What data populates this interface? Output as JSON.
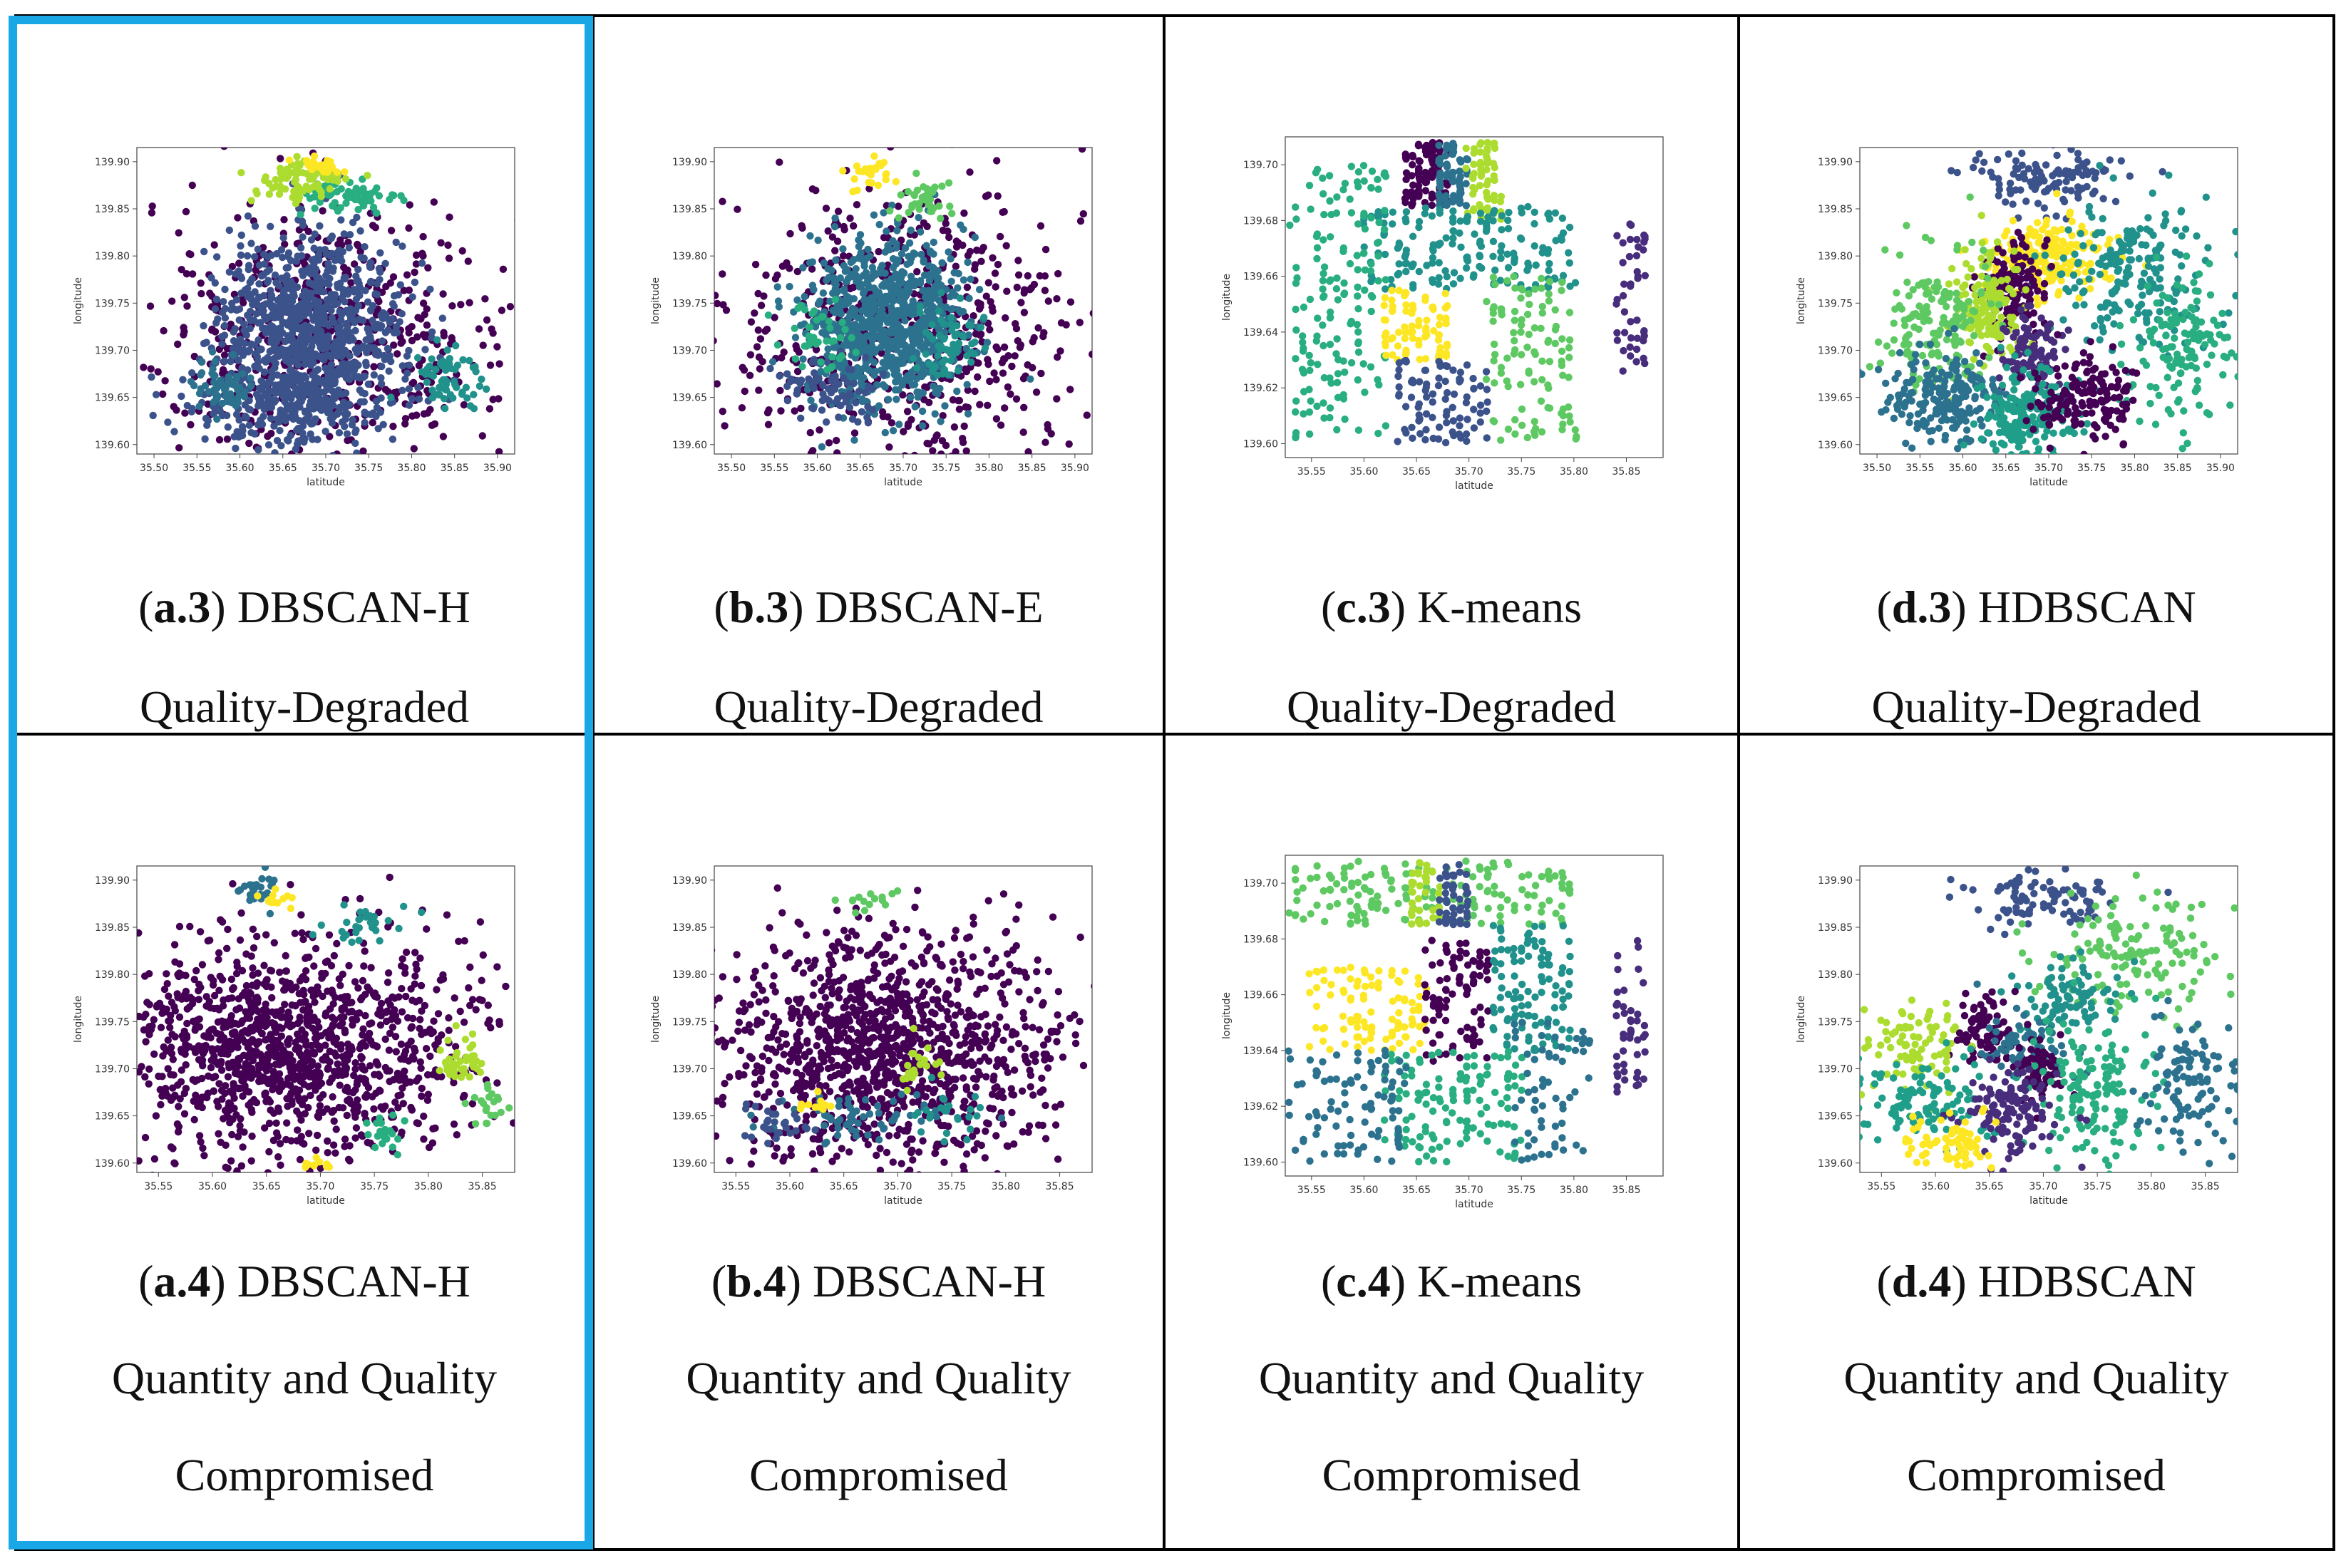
{
  "figure": {
    "highlight_color": "#1aa7e6",
    "palette": [
      "#440154",
      "#3b528b",
      "#21918c",
      "#5ec962",
      "#fde725",
      "#2c728e",
      "#28ae80",
      "#addc30",
      "#472d7b",
      "#31688e",
      "#1f9e89",
      "#90d743"
    ]
  },
  "panels": [
    {
      "id": "a3",
      "tag": "a.3",
      "method": "DBSCAN-H",
      "cond1": "Quality-Degraded",
      "cond2": ""
    },
    {
      "id": "b3",
      "tag": "b.3",
      "method": "DBSCAN-E",
      "cond1": "Quality-Degraded",
      "cond2": ""
    },
    {
      "id": "c3",
      "tag": "c.3",
      "method": "K-means",
      "cond1": "Quality-Degraded",
      "cond2": ""
    },
    {
      "id": "d3",
      "tag": "d.3",
      "method": "HDBSCAN",
      "cond1": "Quality-Degraded",
      "cond2": ""
    },
    {
      "id": "a4",
      "tag": "a.4",
      "method": "DBSCAN-H",
      "cond1": "Quantity and Quality",
      "cond2": "Compromised"
    },
    {
      "id": "b4",
      "tag": "b.4",
      "method": "DBSCAN-H",
      "cond1": "Quantity and Quality",
      "cond2": "Compromised"
    },
    {
      "id": "c4",
      "tag": "c.4",
      "method": "K-means",
      "cond1": "Quantity and Quality",
      "cond2": "Compromised"
    },
    {
      "id": "d4",
      "tag": "d.4",
      "method": "HDBSCAN",
      "cond1": "Quantity and Quality",
      "cond2": "Compromised"
    }
  ],
  "chart_data": [
    {
      "panel": "a.3",
      "type": "scatter",
      "xlabel": "latitude",
      "ylabel": "longitude",
      "xlim": [
        35.48,
        35.92
      ],
      "ylim": [
        139.59,
        139.915
      ],
      "xticks": [
        "35.50",
        "35.55",
        "35.60",
        "35.65",
        "35.70",
        "35.75",
        "35.80",
        "35.85",
        "35.90"
      ],
      "yticks": [
        "139.60",
        "139.65",
        "139.70",
        "139.75",
        "139.80",
        "139.85",
        "139.90"
      ],
      "clusters": [
        {
          "color": "#440154",
          "type": "noise",
          "cx": 35.7,
          "cy": 139.72,
          "sx": 0.11,
          "sy": 0.07,
          "n": 600
        },
        {
          "color": "#3b528b",
          "type": "blob",
          "cx": 35.68,
          "cy": 139.72,
          "sx": 0.055,
          "sy": 0.05,
          "n": 900
        },
        {
          "color": "#3b528b",
          "type": "blob",
          "cx": 35.66,
          "cy": 139.64,
          "sx": 0.06,
          "sy": 0.02,
          "n": 200
        },
        {
          "color": "#2c728e",
          "type": "blob",
          "cx": 35.58,
          "cy": 139.66,
          "sx": 0.02,
          "sy": 0.015,
          "n": 60
        },
        {
          "color": "#21918c",
          "type": "blob",
          "cx": 35.84,
          "cy": 139.67,
          "sx": 0.02,
          "sy": 0.02,
          "n": 60
        },
        {
          "color": "#28ae80",
          "type": "blob",
          "cx": 35.73,
          "cy": 139.86,
          "sx": 0.03,
          "sy": 0.01,
          "n": 60
        },
        {
          "color": "#addc30",
          "type": "blob",
          "cx": 35.67,
          "cy": 139.88,
          "sx": 0.03,
          "sy": 0.012,
          "n": 80
        },
        {
          "color": "#fde725",
          "type": "blob",
          "cx": 35.69,
          "cy": 139.895,
          "sx": 0.012,
          "sy": 0.005,
          "n": 25
        }
      ]
    },
    {
      "panel": "b.3",
      "type": "scatter",
      "xlabel": "latitude",
      "ylabel": "longitude",
      "xlim": [
        35.48,
        35.92
      ],
      "ylim": [
        139.59,
        139.915
      ],
      "xticks": [
        "35.50",
        "35.55",
        "35.60",
        "35.65",
        "35.70",
        "35.75",
        "35.80",
        "35.85",
        "35.90"
      ],
      "yticks": [
        "139.60",
        "139.65",
        "139.70",
        "139.75",
        "139.80",
        "139.85",
        "139.90"
      ],
      "clusters": [
        {
          "color": "#440154",
          "type": "noise",
          "cx": 35.7,
          "cy": 139.72,
          "sx": 0.11,
          "sy": 0.07,
          "n": 650
        },
        {
          "color": "#2c728e",
          "type": "blob",
          "cx": 35.68,
          "cy": 139.73,
          "sx": 0.045,
          "sy": 0.045,
          "n": 800
        },
        {
          "color": "#3b528b",
          "type": "blob",
          "cx": 35.62,
          "cy": 139.66,
          "sx": 0.03,
          "sy": 0.015,
          "n": 80
        },
        {
          "color": "#21918c",
          "type": "blob",
          "cx": 35.75,
          "cy": 139.71,
          "sx": 0.02,
          "sy": 0.02,
          "n": 60
        },
        {
          "color": "#28ae80",
          "type": "blob",
          "cx": 35.6,
          "cy": 139.72,
          "sx": 0.02,
          "sy": 0.02,
          "n": 40
        },
        {
          "color": "#5ec962",
          "type": "blob",
          "cx": 35.73,
          "cy": 139.86,
          "sx": 0.02,
          "sy": 0.01,
          "n": 40
        },
        {
          "color": "#fde725",
          "type": "blob",
          "cx": 35.66,
          "cy": 139.89,
          "sx": 0.015,
          "sy": 0.008,
          "n": 25
        }
      ]
    },
    {
      "panel": "c.3",
      "type": "scatter",
      "xlabel": "latitude",
      "ylabel": "longitude",
      "xlim": [
        35.525,
        35.885
      ],
      "ylim": [
        139.595,
        139.71
      ],
      "xticks": [
        "35.55",
        "35.60",
        "35.65",
        "35.70",
        "35.75",
        "35.80",
        "35.85"
      ],
      "yticks": [
        "139.60",
        "139.62",
        "139.64",
        "139.66",
        "139.68",
        "139.70"
      ],
      "clusters": [
        {
          "color": "#440154",
          "type": "grid",
          "x0": 35.64,
          "x1": 35.68,
          "y0": 139.685,
          "y1": 139.708,
          "n": 90
        },
        {
          "color": "#2c728e",
          "type": "grid",
          "x0": 35.67,
          "x1": 35.7,
          "y0": 139.685,
          "y1": 139.708,
          "n": 70
        },
        {
          "color": "#addc30",
          "type": "grid",
          "x0": 35.7,
          "x1": 35.73,
          "y0": 139.68,
          "y1": 139.708,
          "n": 60
        },
        {
          "color": "#21918c",
          "type": "grid",
          "x0": 35.6,
          "x1": 35.8,
          "y0": 139.655,
          "y1": 139.685,
          "n": 180
        },
        {
          "color": "#28ae80",
          "type": "grid",
          "x0": 35.53,
          "x1": 35.62,
          "y0": 139.6,
          "y1": 139.7,
          "n": 160
        },
        {
          "color": "#fde725",
          "type": "grid",
          "x0": 35.62,
          "x1": 35.68,
          "y0": 139.63,
          "y1": 139.655,
          "n": 80
        },
        {
          "color": "#3b528b",
          "type": "grid",
          "x0": 35.63,
          "x1": 35.72,
          "y0": 139.6,
          "y1": 139.63,
          "n": 90
        },
        {
          "color": "#5ec962",
          "type": "grid",
          "x0": 35.72,
          "x1": 35.8,
          "y0": 139.6,
          "y1": 139.66,
          "n": 110
        },
        {
          "color": "#472d7b",
          "type": "grid",
          "x0": 35.84,
          "x1": 35.87,
          "y0": 139.625,
          "y1": 139.68,
          "n": 45
        }
      ]
    },
    {
      "panel": "d.3",
      "type": "scatter",
      "xlabel": "latitude",
      "ylabel": "longitude",
      "xlim": [
        35.48,
        35.92
      ],
      "ylim": [
        139.59,
        139.915
      ],
      "xticks": [
        "35.50",
        "35.55",
        "35.60",
        "35.65",
        "35.70",
        "35.75",
        "35.80",
        "35.85",
        "35.90"
      ],
      "yticks": [
        "139.60",
        "139.65",
        "139.70",
        "139.75",
        "139.80",
        "139.85",
        "139.90"
      ],
      "clusters": [
        {
          "color": "#3b528b",
          "type": "blob",
          "cx": 35.7,
          "cy": 139.88,
          "sx": 0.04,
          "sy": 0.015,
          "n": 120
        },
        {
          "color": "#fde725",
          "type": "blob",
          "cx": 35.7,
          "cy": 139.8,
          "sx": 0.035,
          "sy": 0.02,
          "n": 200
        },
        {
          "color": "#21918c",
          "type": "blob",
          "cx": 35.8,
          "cy": 139.78,
          "sx": 0.05,
          "sy": 0.04,
          "n": 200
        },
        {
          "color": "#440154",
          "type": "blob",
          "cx": 35.66,
          "cy": 139.76,
          "sx": 0.02,
          "sy": 0.03,
          "n": 150
        },
        {
          "color": "#addc30",
          "type": "blob",
          "cx": 35.63,
          "cy": 139.75,
          "sx": 0.02,
          "sy": 0.03,
          "n": 150
        },
        {
          "color": "#5ec962",
          "type": "blob",
          "cx": 35.57,
          "cy": 139.73,
          "sx": 0.03,
          "sy": 0.035,
          "n": 160
        },
        {
          "color": "#28ae80",
          "type": "blob",
          "cx": 35.85,
          "cy": 139.7,
          "sx": 0.03,
          "sy": 0.04,
          "n": 140
        },
        {
          "color": "#472d7b",
          "type": "blob",
          "cx": 35.68,
          "cy": 139.7,
          "sx": 0.02,
          "sy": 0.02,
          "n": 90
        },
        {
          "color": "#2c728e",
          "type": "blob",
          "cx": 35.58,
          "cy": 139.65,
          "sx": 0.035,
          "sy": 0.025,
          "n": 200
        },
        {
          "color": "#1f9e89",
          "type": "blob",
          "cx": 35.68,
          "cy": 139.63,
          "sx": 0.03,
          "sy": 0.025,
          "n": 180
        },
        {
          "color": "#440154",
          "type": "blob",
          "cx": 35.74,
          "cy": 139.65,
          "sx": 0.03,
          "sy": 0.025,
          "n": 150
        }
      ]
    },
    {
      "panel": "a.4",
      "type": "scatter",
      "xlabel": "latitude",
      "ylabel": "longitude",
      "xlim": [
        35.53,
        35.88
      ],
      "ylim": [
        139.59,
        139.915
      ],
      "xticks": [
        "35.55",
        "35.60",
        "35.65",
        "35.70",
        "35.75",
        "35.80",
        "35.85"
      ],
      "yticks": [
        "139.60",
        "139.65",
        "139.70",
        "139.75",
        "139.80",
        "139.85",
        "139.90"
      ],
      "clusters": [
        {
          "color": "#440154",
          "type": "noise",
          "cx": 35.66,
          "cy": 139.72,
          "sx": 0.07,
          "sy": 0.055,
          "n": 1100
        },
        {
          "color": "#440154",
          "type": "blob",
          "cx": 35.79,
          "cy": 139.73,
          "sx": 0.04,
          "sy": 0.06,
          "n": 120
        },
        {
          "color": "#2c728e",
          "type": "blob",
          "cx": 35.64,
          "cy": 139.89,
          "sx": 0.01,
          "sy": 0.01,
          "n": 25
        },
        {
          "color": "#21918c",
          "type": "blob",
          "cx": 35.74,
          "cy": 139.85,
          "sx": 0.02,
          "sy": 0.01,
          "n": 30
        },
        {
          "color": "#addc30",
          "type": "blob",
          "cx": 35.83,
          "cy": 139.71,
          "sx": 0.01,
          "sy": 0.015,
          "n": 40
        },
        {
          "color": "#28ae80",
          "type": "blob",
          "cx": 35.76,
          "cy": 139.63,
          "sx": 0.01,
          "sy": 0.01,
          "n": 20
        },
        {
          "color": "#fde725",
          "type": "blob",
          "cx": 35.66,
          "cy": 139.88,
          "sx": 0.01,
          "sy": 0.004,
          "n": 12
        },
        {
          "color": "#fde725",
          "type": "blob",
          "cx": 35.7,
          "cy": 139.6,
          "sx": 0.01,
          "sy": 0.003,
          "n": 10
        },
        {
          "color": "#5ec962",
          "type": "blob",
          "cx": 35.85,
          "cy": 139.66,
          "sx": 0.01,
          "sy": 0.01,
          "n": 20
        }
      ]
    },
    {
      "panel": "b.4",
      "type": "scatter",
      "xlabel": "latitude",
      "ylabel": "longitude",
      "xlim": [
        35.53,
        35.88
      ],
      "ylim": [
        139.59,
        139.915
      ],
      "xticks": [
        "35.55",
        "35.60",
        "35.65",
        "35.70",
        "35.75",
        "35.80",
        "35.85"
      ],
      "yticks": [
        "139.60",
        "139.65",
        "139.70",
        "139.75",
        "139.80",
        "139.85",
        "139.90"
      ],
      "clusters": [
        {
          "color": "#440154",
          "type": "noise",
          "cx": 35.69,
          "cy": 139.72,
          "sx": 0.075,
          "sy": 0.06,
          "n": 1200
        },
        {
          "color": "#2c728e",
          "type": "blob",
          "cx": 35.66,
          "cy": 139.65,
          "sx": 0.04,
          "sy": 0.012,
          "n": 60
        },
        {
          "color": "#3b528b",
          "type": "blob",
          "cx": 35.59,
          "cy": 139.64,
          "sx": 0.02,
          "sy": 0.015,
          "n": 30
        },
        {
          "color": "#21918c",
          "type": "blob",
          "cx": 35.75,
          "cy": 139.65,
          "sx": 0.02,
          "sy": 0.012,
          "n": 25
        },
        {
          "color": "#addc30",
          "type": "blob",
          "cx": 35.72,
          "cy": 139.7,
          "sx": 0.01,
          "sy": 0.015,
          "n": 20
        },
        {
          "color": "#5ec962",
          "type": "blob",
          "cx": 35.67,
          "cy": 139.88,
          "sx": 0.015,
          "sy": 0.008,
          "n": 15
        },
        {
          "color": "#fde725",
          "type": "blob",
          "cx": 35.62,
          "cy": 139.66,
          "sx": 0.01,
          "sy": 0.005,
          "n": 12
        }
      ]
    },
    {
      "panel": "c.4",
      "type": "scatter",
      "xlabel": "latitude",
      "ylabel": "longitude",
      "xlim": [
        35.525,
        35.885
      ],
      "ylim": [
        139.595,
        139.71
      ],
      "xticks": [
        "35.55",
        "35.60",
        "35.65",
        "35.70",
        "35.75",
        "35.80",
        "35.85"
      ],
      "yticks": [
        "139.60",
        "139.62",
        "139.64",
        "139.66",
        "139.68",
        "139.70"
      ],
      "clusters": [
        {
          "color": "#5ec962",
          "type": "grid",
          "x0": 35.53,
          "x1": 35.8,
          "y0": 139.685,
          "y1": 139.708,
          "n": 160
        },
        {
          "color": "#addc30",
          "type": "grid",
          "x0": 35.64,
          "x1": 35.67,
          "y0": 139.685,
          "y1": 139.708,
          "n": 40
        },
        {
          "color": "#3b528b",
          "type": "grid",
          "x0": 35.67,
          "x1": 35.7,
          "y0": 139.685,
          "y1": 139.708,
          "n": 50
        },
        {
          "color": "#fde725",
          "type": "grid",
          "x0": 35.55,
          "x1": 35.66,
          "y0": 139.64,
          "y1": 139.67,
          "n": 100
        },
        {
          "color": "#440154",
          "type": "grid",
          "x0": 35.66,
          "x1": 35.72,
          "y0": 139.635,
          "y1": 139.68,
          "n": 90
        },
        {
          "color": "#21918c",
          "type": "grid",
          "x0": 35.72,
          "x1": 35.8,
          "y0": 139.64,
          "y1": 139.685,
          "n": 110
        },
        {
          "color": "#28ae80",
          "type": "grid",
          "x0": 35.62,
          "x1": 35.75,
          "y0": 139.6,
          "y1": 139.64,
          "n": 130
        },
        {
          "color": "#2c728e",
          "type": "grid",
          "x0": 35.53,
          "x1": 35.64,
          "y0": 139.6,
          "y1": 139.64,
          "n": 90
        },
        {
          "color": "#2c728e",
          "type": "grid",
          "x0": 35.74,
          "x1": 35.82,
          "y0": 139.6,
          "y1": 139.65,
          "n": 60
        },
        {
          "color": "#472d7b",
          "type": "grid",
          "x0": 35.84,
          "x1": 35.87,
          "y0": 139.625,
          "y1": 139.68,
          "n": 45
        }
      ]
    },
    {
      "panel": "d.4",
      "type": "scatter",
      "xlabel": "latitude",
      "ylabel": "longitude",
      "xlim": [
        35.53,
        35.88
      ],
      "ylim": [
        139.59,
        139.915
      ],
      "xticks": [
        "35.55",
        "35.60",
        "35.65",
        "35.70",
        "35.75",
        "35.80",
        "35.85"
      ],
      "yticks": [
        "139.60",
        "139.65",
        "139.70",
        "139.75",
        "139.80",
        "139.85",
        "139.90"
      ],
      "clusters": [
        {
          "color": "#3b528b",
          "type": "blob",
          "cx": 35.7,
          "cy": 139.88,
          "sx": 0.035,
          "sy": 0.015,
          "n": 90
        },
        {
          "color": "#5ec962",
          "type": "blob",
          "cx": 35.78,
          "cy": 139.82,
          "sx": 0.045,
          "sy": 0.03,
          "n": 140
        },
        {
          "color": "#21918c",
          "type": "blob",
          "cx": 35.72,
          "cy": 139.77,
          "sx": 0.025,
          "sy": 0.02,
          "n": 90
        },
        {
          "color": "#440154",
          "type": "blob",
          "cx": 35.65,
          "cy": 139.74,
          "sx": 0.015,
          "sy": 0.02,
          "n": 80
        },
        {
          "color": "#addc30",
          "type": "blob",
          "cx": 35.58,
          "cy": 139.72,
          "sx": 0.02,
          "sy": 0.025,
          "n": 90
        },
        {
          "color": "#2c728e",
          "type": "blob",
          "cx": 35.68,
          "cy": 139.72,
          "sx": 0.02,
          "sy": 0.02,
          "n": 70
        },
        {
          "color": "#440154",
          "type": "blob",
          "cx": 35.7,
          "cy": 139.7,
          "sx": 0.012,
          "sy": 0.02,
          "n": 60
        },
        {
          "color": "#28ae80",
          "type": "blob",
          "cx": 35.75,
          "cy": 139.68,
          "sx": 0.03,
          "sy": 0.04,
          "n": 140
        },
        {
          "color": "#2c728e",
          "type": "blob",
          "cx": 35.84,
          "cy": 139.68,
          "sx": 0.025,
          "sy": 0.035,
          "n": 110
        },
        {
          "color": "#1f9e89",
          "type": "blob",
          "cx": 35.59,
          "cy": 139.66,
          "sx": 0.03,
          "sy": 0.025,
          "n": 110
        },
        {
          "color": "#472d7b",
          "type": "blob",
          "cx": 35.67,
          "cy": 139.65,
          "sx": 0.025,
          "sy": 0.025,
          "n": 120
        },
        {
          "color": "#fde725",
          "type": "blob",
          "cx": 35.61,
          "cy": 139.62,
          "sx": 0.02,
          "sy": 0.015,
          "n": 70
        }
      ]
    }
  ]
}
